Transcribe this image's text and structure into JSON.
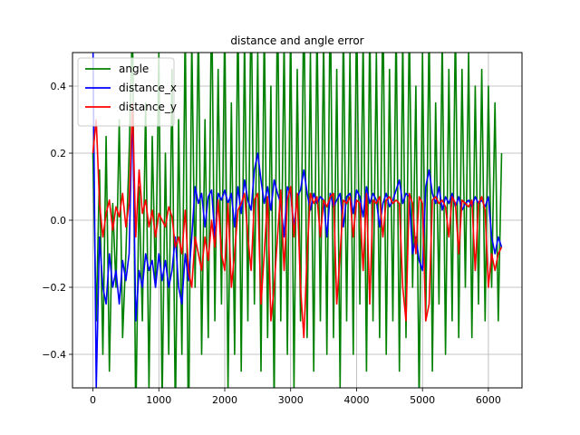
{
  "chart_data": {
    "type": "line",
    "title": "distance and angle error",
    "xlabel": "",
    "ylabel": "",
    "xlim": [
      -310,
      6510
    ],
    "ylim": [
      -0.5,
      0.5
    ],
    "xticks": [
      0,
      1000,
      2000,
      3000,
      4000,
      5000,
      6000
    ],
    "xtick_labels": [
      "0",
      "1000",
      "2000",
      "3000",
      "4000",
      "5000",
      "6000"
    ],
    "yticks": [
      -0.4,
      -0.2,
      0.0,
      0.2,
      0.4
    ],
    "ytick_labels": [
      "−0.4",
      "−0.2",
      "0.0",
      "0.2",
      "0.4"
    ],
    "grid": true,
    "legend_position": "top-left",
    "series": [
      {
        "name": "angle",
        "color": "#008000",
        "x": [
          0,
          50,
          100,
          150,
          200,
          250,
          300,
          350,
          400,
          450,
          500,
          550,
          600,
          650,
          700,
          750,
          800,
          850,
          900,
          950,
          1000,
          1050,
          1100,
          1150,
          1200,
          1250,
          1300,
          1350,
          1400,
          1450,
          1500,
          1550,
          1600,
          1650,
          1700,
          1750,
          1800,
          1850,
          1900,
          1950,
          2000,
          2050,
          2100,
          2150,
          2200,
          2250,
          2300,
          2350,
          2400,
          2450,
          2500,
          2550,
          2600,
          2650,
          2700,
          2750,
          2800,
          2850,
          2900,
          2950,
          3000,
          3050,
          3100,
          3150,
          3200,
          3250,
          3300,
          3350,
          3400,
          3450,
          3500,
          3550,
          3600,
          3650,
          3700,
          3750,
          3800,
          3850,
          3900,
          3950,
          4000,
          4050,
          4100,
          4150,
          4200,
          4250,
          4300,
          4350,
          4400,
          4450,
          4500,
          4550,
          4600,
          4650,
          4700,
          4750,
          4800,
          4850,
          4900,
          4950,
          5000,
          5050,
          5100,
          5150,
          5200,
          5250,
          5300,
          5350,
          5400,
          5450,
          5500,
          5550,
          5600,
          5650,
          5700,
          5750,
          5800,
          5850,
          5900,
          5950,
          6000,
          6050,
          6100,
          6150,
          6200
        ],
        "y": [
          0.2,
          -0.3,
          0.15,
          -0.4,
          0.25,
          -0.45,
          0.05,
          -0.2,
          0.3,
          -0.35,
          -0.1,
          0.2,
          0.6,
          -0.6,
          0.1,
          -0.3,
          0.35,
          -0.5,
          0.25,
          -0.2,
          0.5,
          -0.55,
          0.2,
          -0.4,
          0.45,
          -0.6,
          0.3,
          -0.4,
          0.6,
          -0.7,
          0.55,
          -0.2,
          0.6,
          -0.4,
          0.3,
          -0.35,
          0.7,
          -0.3,
          0.45,
          -0.25,
          0.6,
          -0.5,
          0.35,
          -0.4,
          0.65,
          -0.45,
          0.55,
          -0.3,
          0.7,
          -0.25,
          0.5,
          -0.45,
          0.6,
          -0.35,
          0.4,
          -0.55,
          0.7,
          -0.3,
          0.55,
          -0.4,
          0.6,
          -0.5,
          0.45,
          -0.3,
          0.7,
          -0.35,
          0.5,
          -0.45,
          0.6,
          -0.3,
          0.55,
          -0.4,
          0.7,
          -0.35,
          0.45,
          -0.5,
          0.6,
          -0.3,
          0.5,
          -0.4,
          0.65,
          -0.25,
          0.55,
          -0.45,
          0.6,
          -0.3,
          0.5,
          -0.35,
          0.7,
          -0.4,
          0.45,
          -0.3,
          0.6,
          -0.45,
          0.55,
          -0.35,
          0.6,
          -0.2,
          0.4,
          -0.55,
          0.5,
          -0.3,
          0.6,
          -0.45,
          0.35,
          -0.25,
          0.55,
          -0.4,
          0.45,
          -0.3,
          0.6,
          -0.35,
          0.45,
          -0.2,
          0.5,
          -0.35,
          0.4,
          -0.25,
          0.45,
          -0.3,
          0.4,
          -0.2,
          0.35,
          -0.3,
          0.2
        ]
      },
      {
        "name": "distance_x",
        "color": "#0000ff",
        "x": [
          0,
          50,
          100,
          150,
          200,
          250,
          300,
          350,
          400,
          450,
          500,
          550,
          600,
          650,
          700,
          750,
          800,
          850,
          900,
          950,
          1000,
          1050,
          1100,
          1150,
          1200,
          1250,
          1300,
          1350,
          1400,
          1450,
          1500,
          1550,
          1600,
          1650,
          1700,
          1750,
          1800,
          1850,
          1900,
          1950,
          2000,
          2050,
          2100,
          2150,
          2200,
          2250,
          2300,
          2350,
          2400,
          2450,
          2500,
          2550,
          2600,
          2650,
          2700,
          2750,
          2800,
          2850,
          2900,
          2950,
          3000,
          3050,
          3100,
          3150,
          3200,
          3250,
          3300,
          3350,
          3400,
          3450,
          3500,
          3550,
          3600,
          3650,
          3700,
          3750,
          3800,
          3850,
          3900,
          3950,
          4000,
          4050,
          4100,
          4150,
          4200,
          4250,
          4300,
          4350,
          4400,
          4450,
          4500,
          4550,
          4600,
          4650,
          4700,
          4750,
          4800,
          4850,
          4900,
          4950,
          5000,
          5050,
          5100,
          5150,
          5200,
          5250,
          5300,
          5350,
          5400,
          5450,
          5500,
          5550,
          5600,
          5650,
          5700,
          5750,
          5800,
          5850,
          5900,
          5950,
          6000,
          6050,
          6100,
          6150,
          6200
        ],
        "y": [
          0.55,
          -0.5,
          -0.05,
          -0.2,
          -0.25,
          -0.1,
          -0.2,
          -0.15,
          -0.25,
          -0.12,
          -0.18,
          -0.1,
          0.35,
          -0.3,
          -0.15,
          -0.2,
          -0.1,
          -0.15,
          -0.12,
          -0.2,
          -0.1,
          -0.18,
          -0.12,
          -0.2,
          -0.15,
          -0.05,
          -0.2,
          -0.25,
          -0.1,
          -0.18,
          -0.05,
          0.1,
          0.05,
          0.08,
          -0.02,
          0.07,
          0.09,
          -0.05,
          0.08,
          0.06,
          0.09,
          0.05,
          0.08,
          -0.02,
          0.1,
          0.02,
          0.12,
          0.06,
          0.03,
          0.15,
          0.2,
          0.12,
          0.05,
          0.1,
          0.03,
          0.12,
          0.08,
          0.05,
          -0.05,
          0.1,
          0.08,
          -0.02,
          0.07,
          0.09,
          0.15,
          0.08,
          0.03,
          0.08,
          0.05,
          0.07,
          0.06,
          -0.05,
          0.08,
          0.04,
          0.06,
          0.08,
          -0.02,
          0.07,
          0.08,
          0.02,
          0.09,
          0.07,
          0.01,
          0.1,
          0.05,
          0.08,
          0.06,
          -0.02,
          0.05,
          0.08,
          0.04,
          0.06,
          0.09,
          0.12,
          0.05,
          0.08,
          0.07,
          -0.1,
          -0.05,
          -0.12,
          -0.15,
          0.1,
          0.15,
          0.08,
          0.05,
          0.1,
          0.03,
          0.07,
          0.05,
          0.08,
          0.04,
          0.07,
          0.03,
          0.05,
          0.06,
          0.04,
          0.07,
          0.05,
          0.06,
          0.04,
          0.07,
          -0.05,
          -0.1,
          -0.05,
          -0.08
        ]
      },
      {
        "name": "distance_y",
        "color": "#ff0000",
        "x": [
          0,
          50,
          100,
          150,
          200,
          250,
          300,
          350,
          400,
          450,
          500,
          550,
          600,
          650,
          700,
          750,
          800,
          850,
          900,
          950,
          1000,
          1050,
          1100,
          1150,
          1200,
          1250,
          1300,
          1350,
          1400,
          1450,
          1500,
          1550,
          1600,
          1650,
          1700,
          1750,
          1800,
          1850,
          1900,
          1950,
          2000,
          2050,
          2100,
          2150,
          2200,
          2250,
          2300,
          2350,
          2400,
          2450,
          2500,
          2550,
          2600,
          2650,
          2700,
          2750,
          2800,
          2850,
          2900,
          2950,
          3000,
          3050,
          3100,
          3150,
          3200,
          3250,
          3300,
          3350,
          3400,
          3450,
          3500,
          3550,
          3600,
          3650,
          3700,
          3750,
          3800,
          3850,
          3900,
          3950,
          4000,
          4050,
          4100,
          4150,
          4200,
          4250,
          4300,
          4350,
          4400,
          4450,
          4500,
          4550,
          4600,
          4650,
          4700,
          4750,
          4800,
          4850,
          4900,
          4950,
          5000,
          5050,
          5100,
          5150,
          5200,
          5250,
          5300,
          5350,
          5400,
          5450,
          5500,
          5550,
          5600,
          5650,
          5700,
          5750,
          5800,
          5850,
          5900,
          5950,
          6000,
          6050,
          6100,
          6150,
          6200
        ],
        "y": [
          0.2,
          0.3,
          0.05,
          -0.05,
          0.02,
          0.06,
          -0.03,
          0.04,
          0.01,
          0.08,
          -0.02,
          0.05,
          0.35,
          -0.05,
          0.15,
          0.02,
          0.06,
          -0.02,
          0.03,
          -0.05,
          0.02,
          0.0,
          -0.02,
          0.04,
          0.01,
          -0.08,
          -0.05,
          -0.1,
          0.03,
          -0.15,
          -0.2,
          -0.05,
          -0.1,
          -0.15,
          -0.05,
          -0.12,
          0.0,
          -0.08,
          0.06,
          -0.1,
          -0.15,
          0.05,
          -0.2,
          -0.1,
          0.03,
          0.05,
          0.08,
          -0.05,
          -0.15,
          0.06,
          0.08,
          -0.25,
          -0.1,
          0.07,
          -0.3,
          -0.2,
          -0.05,
          0.09,
          -0.15,
          0.06,
          0.1,
          -0.05,
          0.08,
          -0.2,
          -0.35,
          -0.1,
          0.08,
          0.05,
          0.07,
          -0.05,
          0.06,
          0.04,
          0.07,
          0.08,
          -0.25,
          -0.1,
          0.06,
          0.05,
          0.07,
          -0.05,
          0.06,
          0.05,
          -0.15,
          0.08,
          -0.25,
          0.06,
          0.05,
          0.07,
          -0.05,
          0.06,
          0.07,
          0.05,
          0.06,
          0.05,
          -0.2,
          -0.3,
          0.08,
          0.05,
          -0.1,
          0.07,
          0.05,
          -0.3,
          -0.25,
          0.06,
          0.07,
          0.05,
          0.06,
          0.04,
          -0.05,
          0.07,
          0.05,
          -0.1,
          0.06,
          0.05,
          0.04,
          0.06,
          -0.15,
          0.05,
          0.07,
          0.03,
          -0.2,
          -0.1,
          -0.15,
          -0.1,
          -0.08
        ]
      }
    ]
  }
}
